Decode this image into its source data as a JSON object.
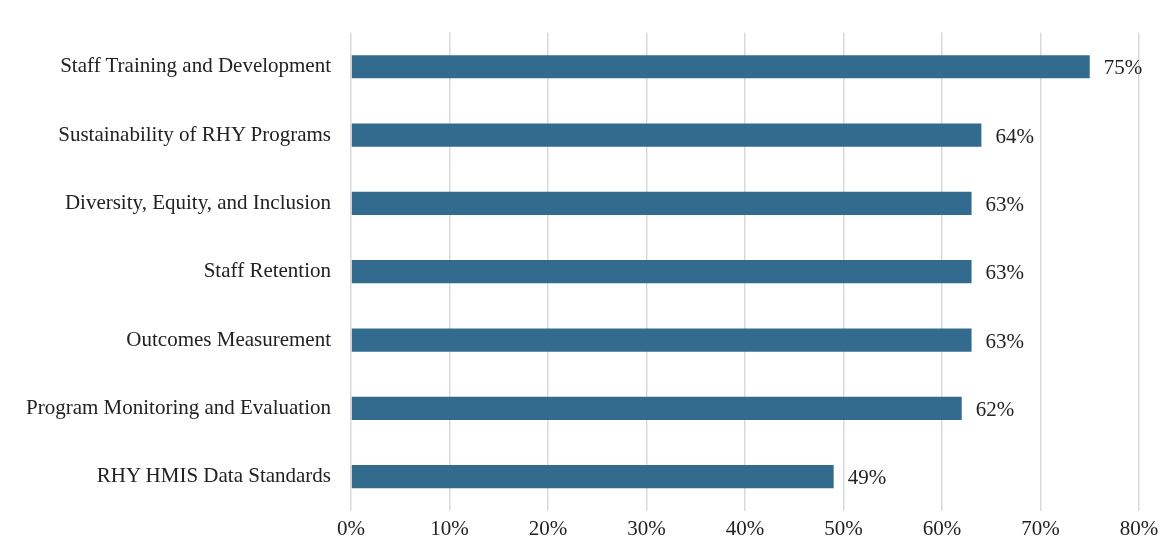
{
  "chart_data": {
    "type": "bar",
    "orientation": "horizontal",
    "categories": [
      "Staff Training and Development",
      "Sustainability of RHY Programs",
      "Diversity, Equity, and Inclusion",
      "Staff Retention",
      "Outcomes Measurement",
      "Program Monitoring and Evaluation",
      "RHY HMIS Data Standards"
    ],
    "values": [
      75,
      64,
      63,
      63,
      63,
      62,
      49
    ],
    "value_labels": [
      "75%",
      "64%",
      "63%",
      "63%",
      "63%",
      "62%",
      "49%"
    ],
    "color": "#336b8e",
    "xlim": [
      0,
      80
    ],
    "xticks": [
      {
        "value": 0,
        "label": "0%"
      },
      {
        "value": 10,
        "label": "10%"
      },
      {
        "value": 20,
        "label": "20%"
      },
      {
        "value": 30,
        "label": "30%"
      },
      {
        "value": 40,
        "label": "40%"
      },
      {
        "value": 50,
        "label": "50%"
      },
      {
        "value": 60,
        "label": "60%"
      },
      {
        "value": 70,
        "label": "70%"
      },
      {
        "value": 80,
        "label": "80%"
      }
    ],
    "grid": "x",
    "legend": false
  }
}
